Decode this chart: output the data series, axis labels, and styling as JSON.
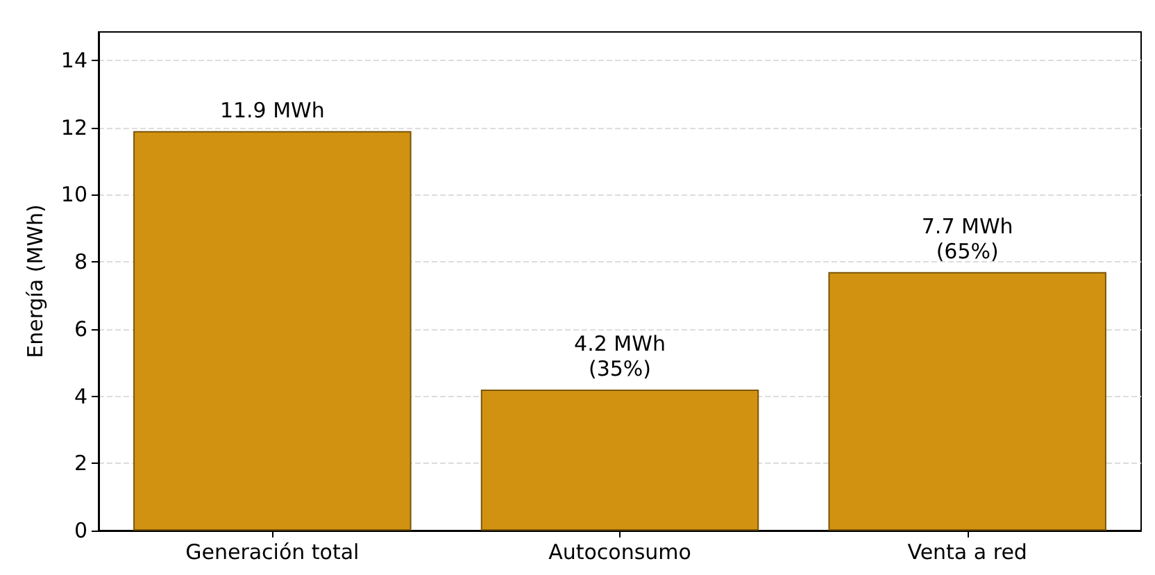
{
  "chart_data": {
    "type": "bar",
    "ylabel": "Energía (MWh)",
    "categories": [
      "Generación total",
      "Autoconsumo",
      "Venta a red"
    ],
    "values": [
      11.9,
      4.2,
      7.7
    ],
    "color": "#d29211",
    "value_labels": [
      "11.9 MWh",
      "4.2 MWh\n(35%)",
      "7.7 MWh\n(65%)"
    ],
    "ylim": [
      0,
      14.85
    ],
    "yticks": [
      0,
      2,
      4,
      6,
      8,
      10,
      12,
      14
    ],
    "grid": "y"
  }
}
